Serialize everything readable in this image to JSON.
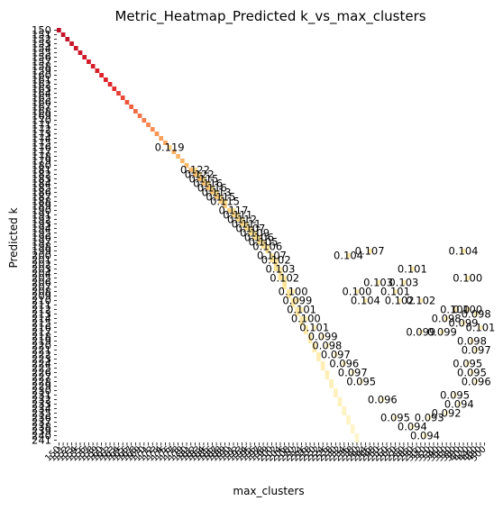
{
  "chart_data": {
    "type": "heatmap",
    "title": "Metric_Heatmap_Predicted k_vs_max_clusters",
    "xlabel": "max_clusters",
    "ylabel": "Predicted k",
    "y_range": [
      150,
      241
    ],
    "x_categories": [
      150,
      151,
      152,
      153,
      154,
      155,
      156,
      157,
      158,
      159,
      160,
      161,
      162,
      163,
      164,
      165,
      166,
      167,
      168,
      169,
      170,
      171,
      172,
      173,
      174,
      175,
      176,
      177,
      178,
      179,
      180,
      181,
      182,
      183,
      184,
      185,
      186,
      187,
      188,
      189,
      190,
      191,
      192,
      193,
      194,
      195,
      196,
      197,
      198,
      199,
      200,
      202,
      204,
      206,
      208,
      210,
      212,
      214,
      216,
      218,
      220,
      222,
      224,
      226,
      228,
      230,
      232,
      234,
      236,
      238,
      240,
      242,
      244,
      246,
      248,
      250,
      255,
      260,
      265,
      270,
      275,
      280,
      285,
      290,
      295,
      300,
      310,
      320,
      330,
      340,
      350,
      360,
      370,
      380,
      390,
      400,
      420,
      440,
      460,
      480,
      500
    ],
    "colormap": {
      "low": "#ffffcc",
      "mid": "#fd8d3c",
      "high": "#bd0026"
    },
    "diagonal_color_stops": [
      {
        "k": 150,
        "color": "#c0102a"
      },
      {
        "k": 162,
        "color": "#e0242a"
      },
      {
        "k": 168,
        "color": "#f46d43"
      },
      {
        "k": 176,
        "color": "#fdae61"
      },
      {
        "k": 195,
        "color": "#fee08b"
      },
      {
        "k": 241,
        "color": "#fff6cc"
      }
    ],
    "annotations": [
      {
        "max_clusters": 176,
        "k": 176,
        "value": "0.119"
      },
      {
        "max_clusters": 182,
        "k": 181,
        "value": "0.122"
      },
      {
        "max_clusters": 183,
        "k": 182,
        "value": "0.122"
      },
      {
        "max_clusters": 184,
        "k": 183,
        "value": "0.115"
      },
      {
        "max_clusters": 185,
        "k": 184,
        "value": "0.116"
      },
      {
        "max_clusters": 186,
        "k": 185,
        "value": "0.116"
      },
      {
        "max_clusters": 187,
        "k": 186,
        "value": "0.113"
      },
      {
        "max_clusters": 188,
        "k": 187,
        "value": "0.115"
      },
      {
        "max_clusters": 189,
        "k": 188,
        "value": "0.115"
      },
      {
        "max_clusters": 191,
        "k": 190,
        "value": "0.117"
      },
      {
        "max_clusters": 192,
        "k": 191,
        "value": "0.111"
      },
      {
        "max_clusters": 193,
        "k": 192,
        "value": "0.112"
      },
      {
        "max_clusters": 194,
        "k": 193,
        "value": "0.111"
      },
      {
        "max_clusters": 195,
        "k": 194,
        "value": "0.107"
      },
      {
        "max_clusters": 196,
        "k": 195,
        "value": "0.109"
      },
      {
        "max_clusters": 197,
        "k": 196,
        "value": "0.106"
      },
      {
        "max_clusters": 198,
        "k": 197,
        "value": "0.105"
      },
      {
        "max_clusters": 199,
        "k": 198,
        "value": "0.106"
      },
      {
        "max_clusters": 200,
        "k": 200,
        "value": "0.107"
      },
      {
        "max_clusters": 202,
        "k": 201,
        "value": "0.102"
      },
      {
        "max_clusters": 204,
        "k": 203,
        "value": "0.103"
      },
      {
        "max_clusters": 206,
        "k": 205,
        "value": "0.102"
      },
      {
        "max_clusters": 210,
        "k": 208,
        "value": "0.100"
      },
      {
        "max_clusters": 212,
        "k": 210,
        "value": "0.099"
      },
      {
        "max_clusters": 214,
        "k": 212,
        "value": "0.101"
      },
      {
        "max_clusters": 216,
        "k": 214,
        "value": "0.100"
      },
      {
        "max_clusters": 220,
        "k": 216,
        "value": "0.101"
      },
      {
        "max_clusters": 224,
        "k": 218,
        "value": "0.099"
      },
      {
        "max_clusters": 226,
        "k": 220,
        "value": "0.098"
      },
      {
        "max_clusters": 230,
        "k": 222,
        "value": "0.097"
      },
      {
        "max_clusters": 234,
        "k": 224,
        "value": "0.096"
      },
      {
        "max_clusters": 238,
        "k": 226,
        "value": "0.097"
      },
      {
        "max_clusters": 242,
        "k": 228,
        "value": "0.095"
      },
      {
        "max_clusters": 255,
        "k": 232,
        "value": "0.096"
      },
      {
        "max_clusters": 270,
        "k": 236,
        "value": "0.095"
      },
      {
        "max_clusters": 290,
        "k": 238,
        "value": "0.094"
      },
      {
        "max_clusters": 310,
        "k": 240,
        "value": "0.094"
      },
      {
        "max_clusters": 236,
        "k": 200,
        "value": "0.104"
      },
      {
        "max_clusters": 246,
        "k": 199,
        "value": "0.107"
      },
      {
        "max_clusters": 290,
        "k": 203,
        "value": "0.101"
      },
      {
        "max_clusters": 400,
        "k": 199,
        "value": "0.104"
      },
      {
        "max_clusters": 420,
        "k": 205,
        "value": "0.100"
      },
      {
        "max_clusters": 250,
        "k": 206,
        "value": "0.103"
      },
      {
        "max_clusters": 280,
        "k": 206,
        "value": "0.103"
      },
      {
        "max_clusters": 240,
        "k": 208,
        "value": "0.100"
      },
      {
        "max_clusters": 270,
        "k": 208,
        "value": "0.101"
      },
      {
        "max_clusters": 244,
        "k": 210,
        "value": "0.104"
      },
      {
        "max_clusters": 275,
        "k": 210,
        "value": "0.102"
      },
      {
        "max_clusters": 300,
        "k": 210,
        "value": "0.102"
      },
      {
        "max_clusters": 380,
        "k": 212,
        "value": "0.100"
      },
      {
        "max_clusters": 420,
        "k": 212,
        "value": "0.100"
      },
      {
        "max_clusters": 460,
        "k": 213,
        "value": "0.098"
      },
      {
        "max_clusters": 360,
        "k": 214,
        "value": "0.098"
      },
      {
        "max_clusters": 400,
        "k": 215,
        "value": "0.099"
      },
      {
        "max_clusters": 480,
        "k": 216,
        "value": "0.101"
      },
      {
        "max_clusters": 300,
        "k": 217,
        "value": "0.099"
      },
      {
        "max_clusters": 350,
        "k": 217,
        "value": "0.099"
      },
      {
        "max_clusters": 440,
        "k": 219,
        "value": "0.098"
      },
      {
        "max_clusters": 460,
        "k": 221,
        "value": "0.097"
      },
      {
        "max_clusters": 420,
        "k": 224,
        "value": "0.095"
      },
      {
        "max_clusters": 440,
        "k": 226,
        "value": "0.095"
      },
      {
        "max_clusters": 460,
        "k": 228,
        "value": "0.096"
      },
      {
        "max_clusters": 380,
        "k": 231,
        "value": "0.095"
      },
      {
        "max_clusters": 390,
        "k": 233,
        "value": "0.094"
      },
      {
        "max_clusters": 360,
        "k": 235,
        "value": "0.092"
      },
      {
        "max_clusters": 320,
        "k": 236,
        "value": "0.093"
      }
    ]
  }
}
